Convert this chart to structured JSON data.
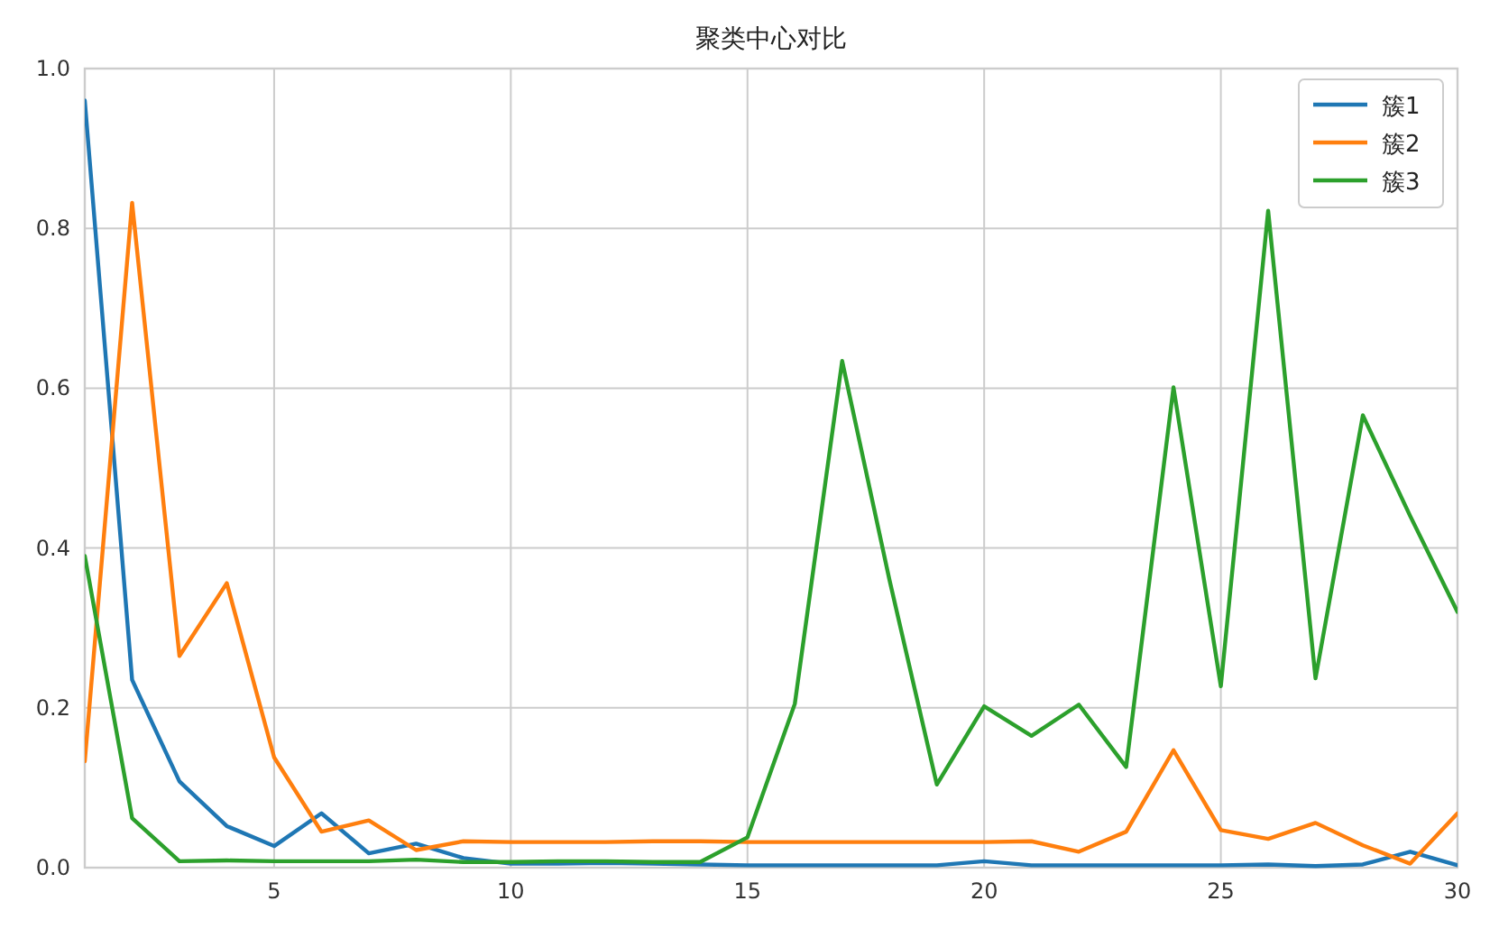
{
  "chart_data": {
    "type": "line",
    "title": "聚类中心对比",
    "x": [
      1,
      2,
      3,
      4,
      5,
      6,
      7,
      8,
      9,
      10,
      11,
      12,
      13,
      14,
      15,
      16,
      17,
      18,
      19,
      20,
      21,
      22,
      23,
      24,
      25,
      26,
      27,
      28,
      29,
      30
    ],
    "series": [
      {
        "name": "簇1",
        "color": "#1f77b4",
        "values": [
          0.96,
          0.235,
          0.108,
          0.052,
          0.027,
          0.068,
          0.018,
          0.03,
          0.012,
          0.005,
          0.005,
          0.006,
          0.005,
          0.004,
          0.003,
          0.003,
          0.003,
          0.003,
          0.003,
          0.008,
          0.003,
          0.003,
          0.003,
          0.003,
          0.003,
          0.004,
          0.002,
          0.004,
          0.02,
          0.003
        ]
      },
      {
        "name": "簇2",
        "color": "#ff7f0e",
        "values": [
          0.133,
          0.832,
          0.265,
          0.356,
          0.138,
          0.045,
          0.059,
          0.022,
          0.033,
          0.032,
          0.032,
          0.032,
          0.033,
          0.033,
          0.032,
          0.032,
          0.032,
          0.032,
          0.032,
          0.032,
          0.033,
          0.02,
          0.045,
          0.147,
          0.047,
          0.036,
          0.056,
          0.028,
          0.005,
          0.068
        ]
      },
      {
        "name": "簇3",
        "color": "#2ca02c",
        "values": [
          0.39,
          0.062,
          0.008,
          0.009,
          0.008,
          0.008,
          0.008,
          0.01,
          0.007,
          0.007,
          0.008,
          0.008,
          0.007,
          0.007,
          0.038,
          0.205,
          0.634,
          0.36,
          0.104,
          0.202,
          0.165,
          0.204,
          0.126,
          0.601,
          0.227,
          0.822,
          0.237,
          0.566,
          0.44,
          0.32
        ]
      }
    ],
    "xlim": [
      1,
      30
    ],
    "xticks": [
      5,
      10,
      15,
      20,
      25,
      30
    ],
    "ylim": [
      0,
      1
    ],
    "yticks": [
      {
        "value": 0,
        "label": "0.0"
      },
      {
        "value": 0.2,
        "label": "0.2"
      },
      {
        "value": 0.4,
        "label": "0.4"
      },
      {
        "value": 0.6,
        "label": "0.6"
      },
      {
        "value": 0.8,
        "label": "0.8"
      },
      {
        "value": 1,
        "label": "1.0"
      }
    ],
    "grid": true,
    "legend": "top right",
    "line_style": "solid",
    "marker": "none"
  }
}
